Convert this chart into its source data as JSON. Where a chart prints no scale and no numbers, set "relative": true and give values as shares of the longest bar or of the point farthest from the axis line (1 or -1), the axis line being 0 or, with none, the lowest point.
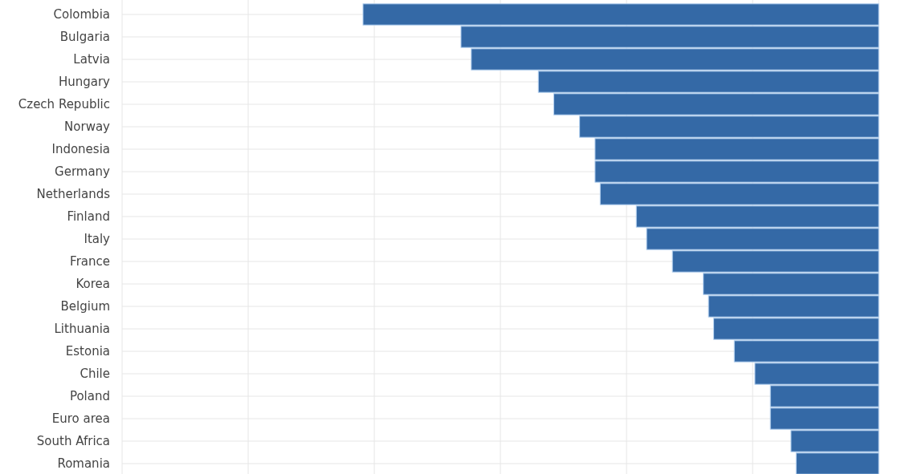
{
  "chart_data": {
    "type": "bar",
    "orientation": "horizontal",
    "relative": true,
    "grid": true,
    "color": "#3469a6",
    "categories": [
      "Colombia",
      "Bulgaria",
      "Latvia",
      "Hungary",
      "Czech Republic",
      "Norway",
      "Indonesia",
      "Germany",
      "Netherlands",
      "Finland",
      "Italy",
      "France",
      "Korea",
      "Belgium",
      "Lithuania",
      "Estonia",
      "Chile",
      "Poland",
      "Euro area",
      "South Africa",
      "Romania"
    ],
    "values": [
      -1,
      -0.81,
      -0.79,
      -0.66,
      -0.63,
      -0.58,
      -0.55,
      -0.55,
      -0.54,
      -0.47,
      -0.45,
      -0.4,
      -0.34,
      -0.33,
      -0.32,
      -0.28,
      -0.24,
      -0.21,
      -0.21,
      -0.17,
      -0.16
    ]
  }
}
